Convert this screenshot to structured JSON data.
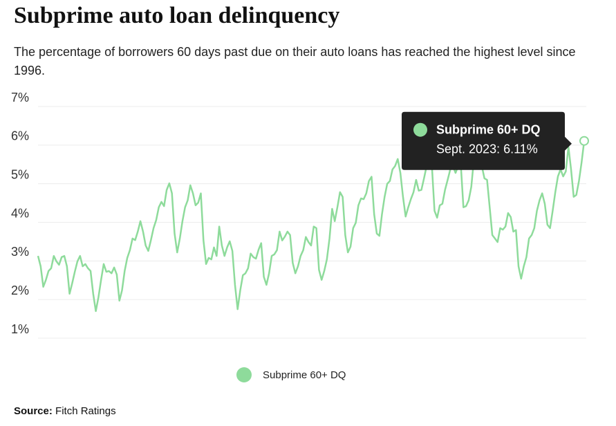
{
  "chart_data": {
    "type": "line",
    "title": "Subprime auto loan delinquency",
    "subtitle": "The percentage of borrowers 60 days past due on their auto loans has reached the highest level since 1996.",
    "ylim": [
      1,
      7
    ],
    "yticks": [
      {
        "value": 1,
        "label": "1%"
      },
      {
        "value": 2,
        "label": "2%"
      },
      {
        "value": 3,
        "label": "3%"
      },
      {
        "value": 4,
        "label": "4%"
      },
      {
        "value": 5,
        "label": "5%"
      },
      {
        "value": 6,
        "label": "6%"
      },
      {
        "value": 7,
        "label": "7%"
      }
    ],
    "grid": true,
    "legend": "bottom",
    "series": [
      {
        "name": "Subprime 60+ DQ",
        "color": "#8edb9b",
        "values": [
          3.13,
          2.86,
          2.33,
          2.51,
          2.74,
          2.81,
          3.13,
          2.99,
          2.9,
          3.1,
          3.13,
          2.86,
          2.15,
          2.42,
          2.72,
          2.99,
          3.13,
          2.86,
          2.92,
          2.81,
          2.74,
          2.15,
          1.7,
          2.06,
          2.51,
          2.92,
          2.72,
          2.74,
          2.68,
          2.83,
          2.65,
          1.97,
          2.24,
          2.74,
          3.08,
          3.28,
          3.58,
          3.54,
          3.76,
          4.03,
          3.76,
          3.4,
          3.26,
          3.54,
          3.85,
          4.06,
          4.39,
          4.53,
          4.42,
          4.84,
          5.01,
          4.75,
          3.71,
          3.22,
          3.58,
          4.03,
          4.39,
          4.57,
          4.96,
          4.75,
          4.44,
          4.51,
          4.75,
          3.53,
          2.92,
          3.08,
          3.04,
          3.35,
          3.13,
          3.89,
          3.4,
          3.13,
          3.35,
          3.51,
          3.26,
          2.38,
          1.75,
          2.24,
          2.63,
          2.68,
          2.81,
          3.19,
          3.1,
          3.06,
          3.29,
          3.46,
          2.59,
          2.38,
          2.68,
          3.13,
          3.17,
          3.28,
          3.76,
          3.53,
          3.63,
          3.76,
          3.67,
          2.95,
          2.68,
          2.86,
          3.13,
          3.28,
          3.62,
          3.49,
          3.4,
          3.89,
          3.85,
          2.77,
          2.51,
          2.74,
          3.04,
          3.58,
          4.35,
          4.03,
          4.39,
          4.78,
          4.66,
          3.67,
          3.22,
          3.37,
          3.85,
          3.99,
          4.44,
          4.62,
          4.6,
          4.75,
          5.07,
          5.18,
          4.21,
          3.71,
          3.65,
          4.21,
          4.66,
          5.0,
          5.07,
          5.37,
          5.46,
          5.64,
          5.28,
          4.66,
          4.15,
          4.39,
          4.6,
          4.78,
          5.1,
          4.82,
          4.84,
          5.14,
          5.46,
          5.91,
          5.46,
          4.3,
          4.12,
          4.44,
          4.48,
          4.84,
          5.1,
          5.37,
          5.46,
          5.28,
          5.46,
          5.5,
          4.39,
          4.42,
          4.57,
          4.92,
          5.64,
          5.82,
          5.73,
          5.46,
          5.14,
          5.1,
          4.39,
          3.67,
          3.58,
          3.49,
          3.85,
          3.81,
          3.89,
          4.24,
          4.14,
          3.76,
          3.8,
          2.86,
          2.54,
          2.86,
          3.1,
          3.58,
          3.67,
          3.85,
          4.3,
          4.57,
          4.75,
          4.48,
          3.94,
          3.85,
          4.3,
          4.78,
          5.19,
          5.37,
          5.19,
          5.32,
          5.96,
          5.37,
          4.66,
          4.71,
          5.07,
          5.55,
          6.11
        ]
      }
    ],
    "tooltip": {
      "label": "Sept. 2023: 6.11%"
    },
    "source_label": "Source:",
    "source": "Fitch Ratings"
  }
}
